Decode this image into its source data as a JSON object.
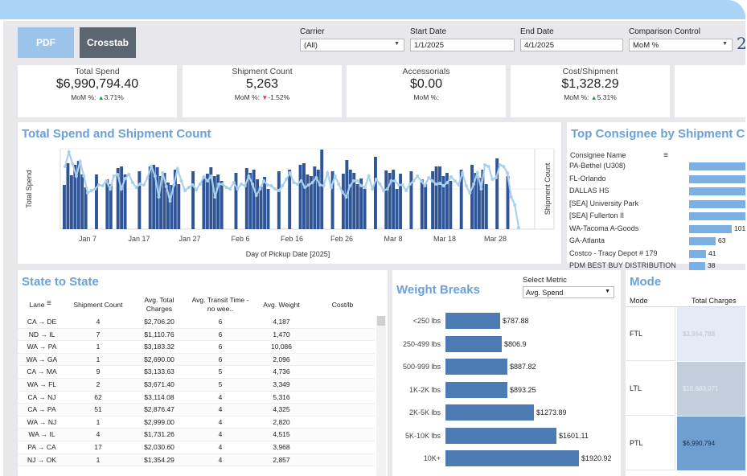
{
  "toolbar": {
    "pdf_label": "PDF",
    "crosstab_label": "Crosstab"
  },
  "filters": {
    "carrier": {
      "label": "Carrier",
      "value": "(All)"
    },
    "start_date": {
      "label": "Start Date",
      "value": "1/1/2025"
    },
    "end_date": {
      "label": "End Date",
      "value": "4/1/2025"
    },
    "comparison": {
      "label": "Comparison Control",
      "value": "MoM %"
    },
    "clipped_text": "2"
  },
  "kpis": [
    {
      "title": "Total Spend",
      "value": "$6,990,794.40",
      "mom_label": "MoM %:",
      "mom_arrow": "▲",
      "mom_value": "3.71%"
    },
    {
      "title": "Shipment Count",
      "value": "5,263",
      "mom_label": "MoM %:",
      "mom_arrow": "▼",
      "mom_value": "-1.52%"
    },
    {
      "title": "Accessorials",
      "value": "$0.00",
      "mom_label": "MoM %:",
      "mom_arrow": "",
      "mom_value": ""
    },
    {
      "title": "Cost/Shipment",
      "value": "$1,328.29",
      "mom_label": "MoM %:",
      "mom_arrow": "▲",
      "mom_value": "5.31%"
    }
  ],
  "spend_chart": {
    "title": "Total Spend and Shipment Count",
    "ylabel": "Total Spend",
    "y2label": "Shipment Count",
    "xlabel": "Day of Pickup Date [2025]",
    "ticks": [
      "Jan 7",
      "Jan 17",
      "Jan 27",
      "Feb 6",
      "Feb 16",
      "Feb 26",
      "Mar 8",
      "Mar 18",
      "Mar 28"
    ]
  },
  "chart_data": {
    "type": "bar",
    "title": "Total Spend and Shipment Count",
    "xlabel": "Day of Pickup Date [2025]",
    "ylabel": "Total Spend",
    "y2label": "Shipment Count",
    "x_ticks": [
      "Jan 7",
      "Jan 17",
      "Jan 27",
      "Feb 6",
      "Feb 16",
      "Feb 26",
      "Mar 8",
      "Mar 18",
      "Mar 28"
    ],
    "series": [
      {
        "kind": "bar",
        "axis": "left",
        "values": [
          0.55,
          0.82,
          0.67,
          0.8,
          0.85,
          0.68,
          0.52,
          0.0,
          0.0,
          0.68,
          0.0,
          0.0,
          0.62,
          0.56,
          0.0,
          0.76,
          0.78,
          0.68,
          0.0,
          0.0,
          0.0,
          0.72,
          0.0,
          0.0,
          0.78,
          0.8,
          0.77,
          0.66,
          0.7,
          0.58,
          0.55,
          0.74,
          0.56,
          0.0,
          0.0,
          0.0,
          0.72,
          0.0,
          0.0,
          0.64,
          0.69,
          0.77,
          0.66,
          0.68,
          0.6,
          0.0,
          0.0,
          0.0,
          0.7,
          0.0,
          0.0,
          0.76,
          0.7,
          0.74,
          0.62,
          0.53,
          0.65,
          0.5,
          0.0,
          0.0,
          0.72,
          0.0,
          0.0,
          0.74,
          0.0,
          0.0,
          0.8,
          0.82,
          0.68,
          0.66,
          0.78,
          0.74,
          0.99,
          0.0,
          0.0,
          0.72,
          0.0,
          0.0,
          0.69,
          0.86,
          0.74,
          0.7,
          0.56,
          0.63,
          0.5,
          0.0,
          0.0,
          0.9,
          0.0,
          0.0,
          0.73,
          0.7,
          0.74,
          0.5,
          0.69,
          0.0,
          0.0,
          0.72,
          0.0,
          0.0,
          0.62,
          0.56,
          0.0,
          0.72,
          0.78,
          0.78,
          0.66,
          0.7,
          0.6,
          0.0,
          0.0,
          0.74,
          0.0,
          0.0,
          0.8,
          0.7,
          0.64,
          0.74,
          0.56,
          0.0,
          0.0,
          0.88,
          0.0,
          0.0,
          0.66
        ]
      },
      {
        "kind": "line",
        "axis": "right",
        "values": [
          0.78,
          0.96,
          0.81,
          0.66,
          0.84,
          0.66,
          0.45,
          0.48,
          0.5,
          0.55,
          0.54,
          0.6,
          0.5,
          0.66,
          0.68,
          0.5,
          0.63,
          0.68,
          0.58,
          0.52,
          0.56,
          0.55,
          0.64,
          0.78,
          0.66,
          0.4,
          0.7,
          0.53,
          0.35,
          0.55,
          0.75,
          0.6,
          0.48,
          0.52,
          0.55,
          0.49,
          0.56,
          0.65,
          0.6,
          0.66,
          0.4,
          0.56,
          0.56,
          0.52,
          0.5,
          0.58,
          0.5,
          0.56,
          0.54,
          0.66,
          0.56,
          0.42,
          0.5,
          0.6,
          0.55,
          0.54,
          0.5,
          0.48,
          0.54,
          0.62,
          0.7,
          0.58,
          0.56,
          0.6,
          0.52,
          0.55,
          0.58,
          0.64,
          0.55,
          0.54,
          0.7,
          0.52,
          0.66,
          0.56,
          0.46,
          0.4,
          0.54,
          0.6,
          0.6,
          0.54,
          0.52,
          0.66,
          0.5,
          0.62,
          0.56,
          0.48,
          0.5,
          0.6,
          0.6,
          0.55,
          0.55,
          0.48,
          0.56,
          0.6,
          0.66,
          0.6,
          0.54,
          0.64,
          0.6,
          0.56,
          0.57,
          0.54,
          0.58,
          0.65,
          0.6,
          0.55,
          0.7,
          0.54,
          0.45,
          0.56,
          0.7,
          0.5,
          0.8,
          0.78,
          0.62,
          0.64,
          0.8,
          0.78,
          0.7,
          0.4,
          0.3,
          0.02
        ]
      }
    ]
  },
  "consignee": {
    "title": "Top Consignee by Shipment C",
    "column": "Consignee Name",
    "rows": [
      {
        "name": "PA-Bethel (U308)",
        "value": "",
        "frac": 1.0
      },
      {
        "name": "FL-Orlando",
        "value": "",
        "frac": 1.0
      },
      {
        "name": "DALLAS HS",
        "value": "",
        "frac": 1.0
      },
      {
        "name": "[SEA] University Park",
        "value": "",
        "frac": 1.0
      },
      {
        "name": "[SEA] Fullerton II",
        "value": "",
        "frac": 1.0
      },
      {
        "name": "WA-Tacoma A-Goods",
        "value": "101",
        "frac": 0.75
      },
      {
        "name": "GA-Atlanta",
        "value": "63",
        "frac": 0.47
      },
      {
        "name": "Costco - Tracy Depot # 179",
        "value": "41",
        "frac": 0.3
      },
      {
        "name": "PDM BEST BUY DISTRIBUTION",
        "value": "38",
        "frac": 0.28
      }
    ]
  },
  "state": {
    "title": "State to State",
    "headers": [
      "Lane",
      "Shipment Count",
      "Avg. Total Charges",
      "Avg. Transit Time  - no wee..",
      "Avg. Weight",
      "Cost/lb"
    ],
    "rows": [
      [
        "CA → DE",
        "4",
        "$2,706.20",
        "6",
        "4,187",
        ""
      ],
      [
        "ND → IL",
        "7",
        "$1,110.76",
        "6",
        "1,470",
        ""
      ],
      [
        "WA → PA",
        "1",
        "$3,183.32",
        "6",
        "10,086",
        ""
      ],
      [
        "WA → GA",
        "1",
        "$2,690.00",
        "6",
        "2,096",
        ""
      ],
      [
        "CA → MA",
        "9",
        "$3,133.63",
        "5",
        "4,736",
        ""
      ],
      [
        "WA → FL",
        "2",
        "$3,671.40",
        "5",
        "3,349",
        ""
      ],
      [
        "CA → NJ",
        "62",
        "$3,114.08",
        "4",
        "5,316",
        ""
      ],
      [
        "CA → PA",
        "51",
        "$2,876.47",
        "4",
        "4,325",
        ""
      ],
      [
        "WA → NJ",
        "1",
        "$2,999.00",
        "4",
        "2,820",
        ""
      ],
      [
        "WA → IL",
        "4",
        "$1,731.26",
        "4",
        "4,515",
        ""
      ],
      [
        "PA → CA",
        "17",
        "$2,030.60",
        "4",
        "3,968",
        ""
      ],
      [
        "NJ → OK",
        "1",
        "$1,354.29",
        "4",
        "2,857",
        ""
      ]
    ]
  },
  "weight": {
    "title": "Weight Breaks",
    "metric_label": "Select Metric",
    "metric_value": "Avg. Spend",
    "rows": [
      {
        "label": "<250 lbs",
        "value": "$787.88",
        "num": 787.88
      },
      {
        "label": "250-499 lbs",
        "value": "$806.9",
        "num": 806.9
      },
      {
        "label": "500-999 lbs",
        "value": "$887.82",
        "num": 887.82
      },
      {
        "label": "1K-2K lbs",
        "value": "$893.25",
        "num": 893.25
      },
      {
        "label": "2K-5K lbs",
        "value": "$1273.89",
        "num": 1273.89
      },
      {
        "label": "5K-10K lbs",
        "value": "$1601.11",
        "num": 1601.11
      },
      {
        "label": "10K+",
        "value": "$1920.92",
        "num": 1920.92
      }
    ]
  },
  "mode": {
    "title": "Mode",
    "col_mode": "Mode",
    "col_charges": "Total Charges",
    "rows": [
      {
        "mode": "FTL",
        "charges": "$3,964,788",
        "color": "#e4ebf4",
        "text_color": "#b9c4d2"
      },
      {
        "mode": "LTL",
        "charges": "$16,683,071",
        "color": "#c3cedd",
        "text_color": "#e8edf4"
      },
      {
        "mode": "PTL",
        "charges": "$6,990,794",
        "color": "#6f9fd0",
        "text_color": "#1d2c44"
      }
    ]
  },
  "colors": {
    "accent": "#6ba0d8",
    "bar": "#2f5597",
    "line": "#a9d1ee"
  }
}
